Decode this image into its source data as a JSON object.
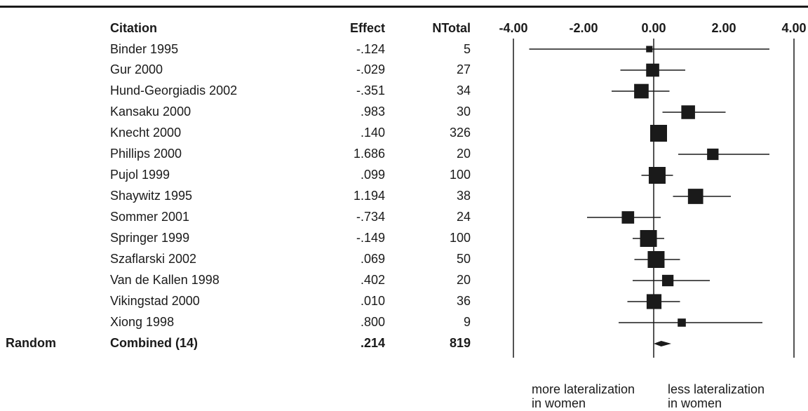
{
  "chart_data": {
    "type": "forest",
    "columns": {
      "citation": "Citation",
      "effect": "Effect",
      "ntotal": "NTotal"
    },
    "ticks": [
      "-4.00",
      "-2.00",
      "0.00",
      "2.00",
      "4.00"
    ],
    "xlim": [
      -4,
      4
    ],
    "studies": [
      {
        "citation": "Binder 1995",
        "effect_label": "-.124",
        "n_label": "5",
        "effect": -0.124,
        "n": 5,
        "ci": [
          -3.55,
          3.3
        ]
      },
      {
        "citation": "Gur 2000",
        "effect_label": "-.029",
        "n_label": "27",
        "effect": -0.029,
        "n": 27,
        "ci": [
          -0.95,
          0.9
        ]
      },
      {
        "citation": "Hund-Georgiadis 2002",
        "effect_label": "-.351",
        "n_label": "34",
        "effect": -0.351,
        "n": 34,
        "ci": [
          -1.2,
          0.45
        ]
      },
      {
        "citation": "Kansaku 2000",
        "effect_label": ".983",
        "n_label": "30",
        "effect": 0.983,
        "n": 30,
        "ci": [
          0.25,
          2.05
        ]
      },
      {
        "citation": "Knecht 2000",
        "effect_label": ".140",
        "n_label": "326",
        "effect": 0.14,
        "n": 326,
        "ci": [
          -0.05,
          0.35
        ]
      },
      {
        "citation": "Phillips 2000",
        "effect_label": "1.686",
        "n_label": "20",
        "effect": 1.686,
        "n": 20,
        "ci": [
          0.7,
          3.3
        ]
      },
      {
        "citation": "Pujol 1999",
        "effect_label": ".099",
        "n_label": "100",
        "effect": 0.099,
        "n": 100,
        "ci": [
          -0.35,
          0.55
        ]
      },
      {
        "citation": "Shaywitz 1995",
        "effect_label": "1.194",
        "n_label": "38",
        "effect": 1.194,
        "n": 38,
        "ci": [
          0.55,
          2.2
        ]
      },
      {
        "citation": "Sommer 2001",
        "effect_label": "-.734",
        "n_label": "24",
        "effect": -0.734,
        "n": 24,
        "ci": [
          -1.9,
          0.2
        ]
      },
      {
        "citation": "Springer 1999",
        "effect_label": "-.149",
        "n_label": "100",
        "effect": -0.149,
        "n": 100,
        "ci": [
          -0.6,
          0.3
        ]
      },
      {
        "citation": "Szaflarski 2002",
        "effect_label": ".069",
        "n_label": "50",
        "effect": 0.069,
        "n": 50,
        "ci": [
          -0.55,
          0.75
        ]
      },
      {
        "citation": "Van de Kallen 1998",
        "effect_label": ".402",
        "n_label": "20",
        "effect": 0.402,
        "n": 20,
        "ci": [
          -0.6,
          1.6
        ]
      },
      {
        "citation": "Vikingstad 2000",
        "effect_label": ".010",
        "n_label": "36",
        "effect": 0.01,
        "n": 36,
        "ci": [
          -0.75,
          0.75
        ]
      },
      {
        "citation": "Xiong 1998",
        "effect_label": ".800",
        "n_label": "9",
        "effect": 0.8,
        "n": 9,
        "ci": [
          -1.0,
          3.1
        ]
      }
    ],
    "combined": {
      "model": "Random",
      "citation": "Combined (14)",
      "effect_label": ".214",
      "n_label": "819",
      "effect": 0.214,
      "ci": [
        0.0,
        0.5
      ]
    },
    "annotation_left": [
      "more lateralization",
      "in women"
    ],
    "annotation_right": [
      "less lateralization",
      "in women"
    ]
  }
}
